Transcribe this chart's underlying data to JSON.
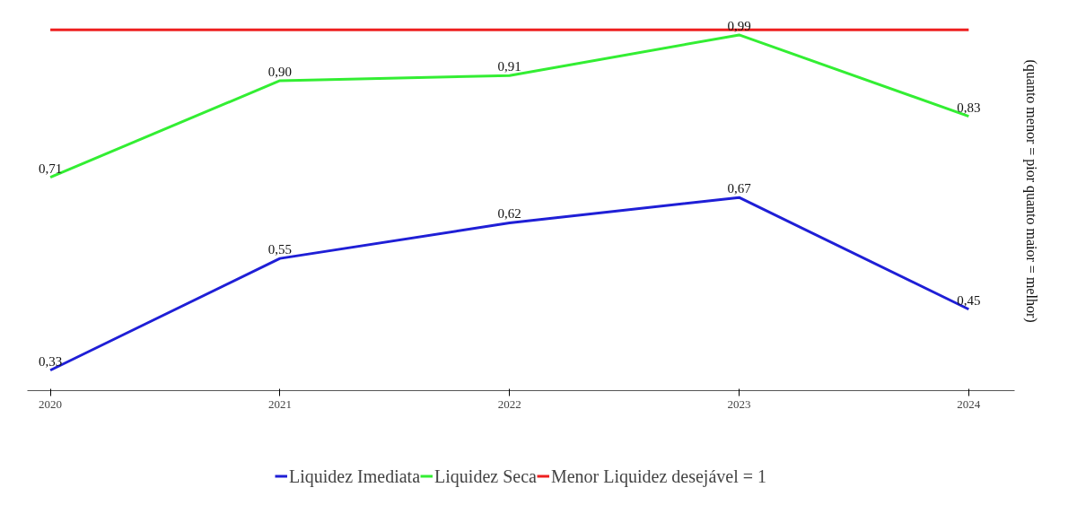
{
  "chart_data": {
    "type": "line",
    "categories": [
      "2020",
      "2021",
      "2022",
      "2023",
      "2024"
    ],
    "series": [
      {
        "name": "Liquidez Imediata",
        "color": "#1f1fd6",
        "values": [
          0.33,
          0.55,
          0.62,
          0.67,
          0.45
        ],
        "value_labels": [
          "0,33",
          "0,55",
          "0,62",
          "0,67",
          "0,45"
        ]
      },
      {
        "name": "Liquidez Seca",
        "color": "#33ee33",
        "values": [
          0.71,
          0.9,
          0.91,
          0.99,
          0.83
        ],
        "value_labels": [
          "0,71",
          "0,90",
          "0,91",
          "0,99",
          "0,83"
        ]
      },
      {
        "name": "Menor Liquidez desejável = 1",
        "color": "#ee2020",
        "values": [
          1,
          1,
          1,
          1,
          1
        ]
      }
    ],
    "annotations": [
      "(quanto menor = pior      quanto maior = melhor)"
    ],
    "legend": "bottom",
    "grid": false,
    "marker": "none",
    "line_style": "solid"
  }
}
